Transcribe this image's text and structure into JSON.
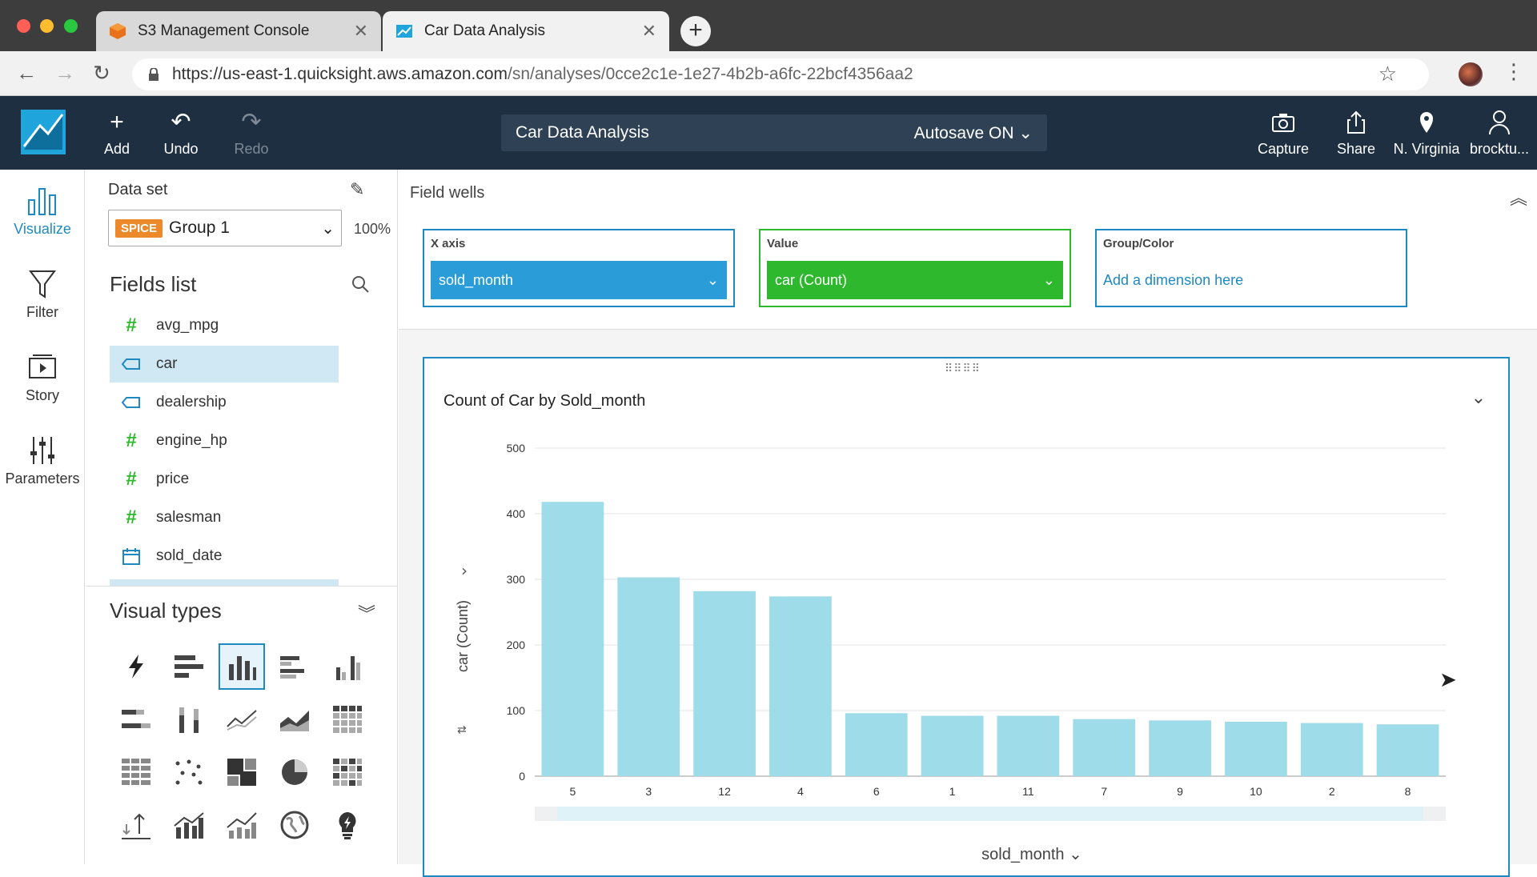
{
  "browser": {
    "tabs": [
      {
        "title": "S3 Management Console",
        "icon": "aws-box-icon",
        "color": "#e8711a"
      },
      {
        "title": "Car Data Analysis",
        "icon": "quicksight-icon",
        "color": "#1fa4dc"
      }
    ],
    "url_host": "https://us-east-1.quicksight.aws.amazon.com",
    "url_path": "/sn/analyses/0cce2c1e-1e27-4b2b-a6fc-22bcf4356aa2"
  },
  "header": {
    "add_label": "Add",
    "undo_label": "Undo",
    "redo_label": "Redo",
    "analysis_title": "Car Data Analysis",
    "autosave_label": "Autosave ON",
    "capture_label": "Capture",
    "share_label": "Share",
    "region_label": "N. Virginia",
    "user_label": "brocktu..."
  },
  "rail": {
    "visualize": "Visualize",
    "filter": "Filter",
    "story": "Story",
    "parameters": "Parameters"
  },
  "dataset": {
    "label": "Data set",
    "spice_badge": "SPICE",
    "selected": "Group 1",
    "percent": "100%"
  },
  "fields": {
    "title": "Fields list",
    "items": [
      {
        "name": "avg_mpg",
        "icon": "#"
      },
      {
        "name": "car",
        "icon": "tag"
      },
      {
        "name": "dealership",
        "icon": "tag"
      },
      {
        "name": "engine_hp",
        "icon": "#"
      },
      {
        "name": "price",
        "icon": "#"
      },
      {
        "name": "salesman",
        "icon": "#"
      },
      {
        "name": "sold_date",
        "icon": "calendar"
      }
    ]
  },
  "visual_types": {
    "title": "Visual types"
  },
  "field_wells": {
    "title": "Field wells",
    "x_axis": {
      "label": "X axis",
      "value": "sold_month"
    },
    "value": {
      "label": "Value",
      "value": "car (Count)"
    },
    "group": {
      "label": "Group/Color",
      "placeholder": "Add a dimension here"
    }
  },
  "colors": {
    "accent": "#1f8ac1",
    "x_axis_pill": "#2a9dd8",
    "value_pill": "#2db82d",
    "bar": "#9edcea"
  },
  "chart_data": {
    "type": "bar",
    "title": "Count of Car by Sold_month",
    "xlabel": "sold_month",
    "ylabel": "car (Count)",
    "categories": [
      "5",
      "3",
      "12",
      "4",
      "6",
      "1",
      "11",
      "7",
      "9",
      "10",
      "2",
      "8"
    ],
    "values": [
      418,
      303,
      282,
      274,
      96,
      92,
      92,
      87,
      85,
      83,
      81,
      79
    ],
    "ylim": [
      0,
      500
    ],
    "yticks": [
      0,
      100,
      200,
      300,
      400,
      500
    ],
    "grid": true
  }
}
